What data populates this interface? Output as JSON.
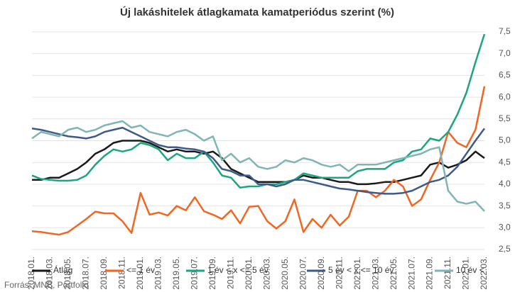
{
  "chart_data": {
    "type": "line",
    "title": "Új lakáshitelek átlagkamata kamatperiódus szerint (%)",
    "source": "Forrás: MNB, Portfolio",
    "categories": [
      "2018.01.",
      null,
      "2018.03.",
      null,
      "2018.05.",
      null,
      "2018.07.",
      null,
      "2018.09.",
      null,
      "2018.11.",
      null,
      "2019.01.",
      null,
      "2019.03.",
      null,
      "2019.05.",
      null,
      "2019.07.",
      null,
      "2019.09.",
      null,
      "2019.11.",
      null,
      "2020.01.",
      null,
      "2020.03.",
      null,
      "2020.05.",
      null,
      "2020.07.",
      null,
      "2020.09.",
      null,
      "2020.11.",
      null,
      "2021.01.",
      null,
      "2021.03.",
      null,
      "2021.05.",
      null,
      "2021.07.",
      null,
      "2021.09.",
      null,
      "2021.11.",
      null,
      "2022.01.",
      null,
      "2022.03."
    ],
    "series": [
      {
        "name": "Átlag",
        "color": "#1a1a1a",
        "values": [
          4.1,
          4.1,
          4.15,
          4.15,
          4.25,
          4.35,
          4.5,
          4.7,
          4.8,
          4.95,
          5.0,
          5.0,
          5.0,
          4.95,
          4.85,
          4.75,
          4.8,
          4.75,
          4.75,
          4.7,
          4.75,
          4.6,
          4.35,
          4.25,
          4.15,
          4.05,
          4.05,
          4.05,
          4.05,
          4.1,
          4.2,
          4.15,
          4.15,
          4.1,
          4.05,
          4.05,
          4.0,
          4.0,
          4.02,
          4.05,
          4.05,
          4.1,
          4.15,
          4.2,
          4.45,
          4.5,
          4.38,
          4.45,
          4.55,
          4.75,
          4.6
        ]
      },
      {
        "name": "<= 1 év",
        "color": "#f26522",
        "values": [
          2.92,
          2.9,
          2.87,
          2.84,
          2.9,
          3.05,
          3.2,
          3.37,
          3.33,
          3.33,
          3.15,
          2.88,
          3.8,
          3.3,
          3.35,
          3.28,
          3.5,
          3.4,
          3.7,
          3.38,
          3.3,
          3.2,
          3.4,
          3.1,
          3.48,
          3.5,
          3.15,
          2.98,
          3.15,
          3.65,
          2.9,
          3.2,
          3.0,
          3.3,
          3.05,
          3.25,
          3.85,
          3.85,
          3.7,
          3.85,
          4.1,
          3.95,
          3.5,
          3.65,
          4.1,
          4.5,
          5.2,
          4.95,
          4.85,
          5.25,
          6.25
        ]
      },
      {
        "name": "1 év < x <= 5 év",
        "color": "#1aa67f",
        "values": [
          4.2,
          4.12,
          4.1,
          4.08,
          4.08,
          4.1,
          4.2,
          4.45,
          4.65,
          4.8,
          4.75,
          4.8,
          4.95,
          4.9,
          4.8,
          4.55,
          4.7,
          4.6,
          4.6,
          4.75,
          4.5,
          4.2,
          4.15,
          3.92,
          3.95,
          3.95,
          4.0,
          4.0,
          4.05,
          4.1,
          4.25,
          4.2,
          4.15,
          4.15,
          4.15,
          4.15,
          4.3,
          4.35,
          4.35,
          4.35,
          4.5,
          4.55,
          4.75,
          4.8,
          5.05,
          5.0,
          5.2,
          5.6,
          6.1,
          6.8,
          7.45
        ]
      },
      {
        "name": "5 év < x <= 10 év",
        "color": "#3e5a8a",
        "values": [
          5.28,
          5.25,
          5.2,
          5.15,
          5.1,
          5.08,
          5.05,
          5.1,
          5.2,
          5.25,
          5.3,
          5.2,
          5.1,
          5.0,
          4.9,
          4.85,
          4.85,
          4.82,
          4.8,
          4.75,
          4.6,
          4.35,
          4.3,
          4.2,
          4.2,
          4.0,
          4.0,
          3.95,
          4.0,
          4.1,
          4.1,
          4.05,
          4.0,
          3.95,
          3.9,
          3.88,
          3.85,
          3.82,
          3.8,
          3.78,
          3.78,
          3.8,
          3.85,
          3.95,
          4.05,
          4.1,
          4.2,
          4.4,
          4.7,
          5.0,
          5.28
        ]
      },
      {
        "name": "10 év <",
        "color": "#7fb5b5",
        "values": [
          5.05,
          5.2,
          5.15,
          5.1,
          5.25,
          5.3,
          5.2,
          5.25,
          5.35,
          5.4,
          5.45,
          5.3,
          5.35,
          5.2,
          5.15,
          5.1,
          5.2,
          5.25,
          5.15,
          5.0,
          5.1,
          4.55,
          4.7,
          4.5,
          4.6,
          4.4,
          4.35,
          4.4,
          4.55,
          4.5,
          4.6,
          4.55,
          4.45,
          4.4,
          4.45,
          4.3,
          4.45,
          4.45,
          4.45,
          4.5,
          4.55,
          4.6,
          4.65,
          4.7,
          4.8,
          4.85,
          3.85,
          3.6,
          3.55,
          3.6,
          3.38
        ]
      }
    ],
    "ylim": [
      2.5,
      7.5
    ],
    "yticks": [
      {
        "value": 2.5,
        "label": "2,5"
      },
      {
        "value": 3.0,
        "label": "3,0"
      },
      {
        "value": 3.5,
        "label": "3,5"
      },
      {
        "value": 4.0,
        "label": "4,0"
      },
      {
        "value": 4.5,
        "label": "4,5"
      },
      {
        "value": 5.0,
        "label": "5,0"
      },
      {
        "value": 5.5,
        "label": "5,5"
      },
      {
        "value": 6.0,
        "label": "6,0"
      },
      {
        "value": 6.5,
        "label": "6,5"
      },
      {
        "value": 7.0,
        "label": "7,0"
      },
      {
        "value": 7.5,
        "label": "7,5"
      }
    ],
    "grid": true
  }
}
